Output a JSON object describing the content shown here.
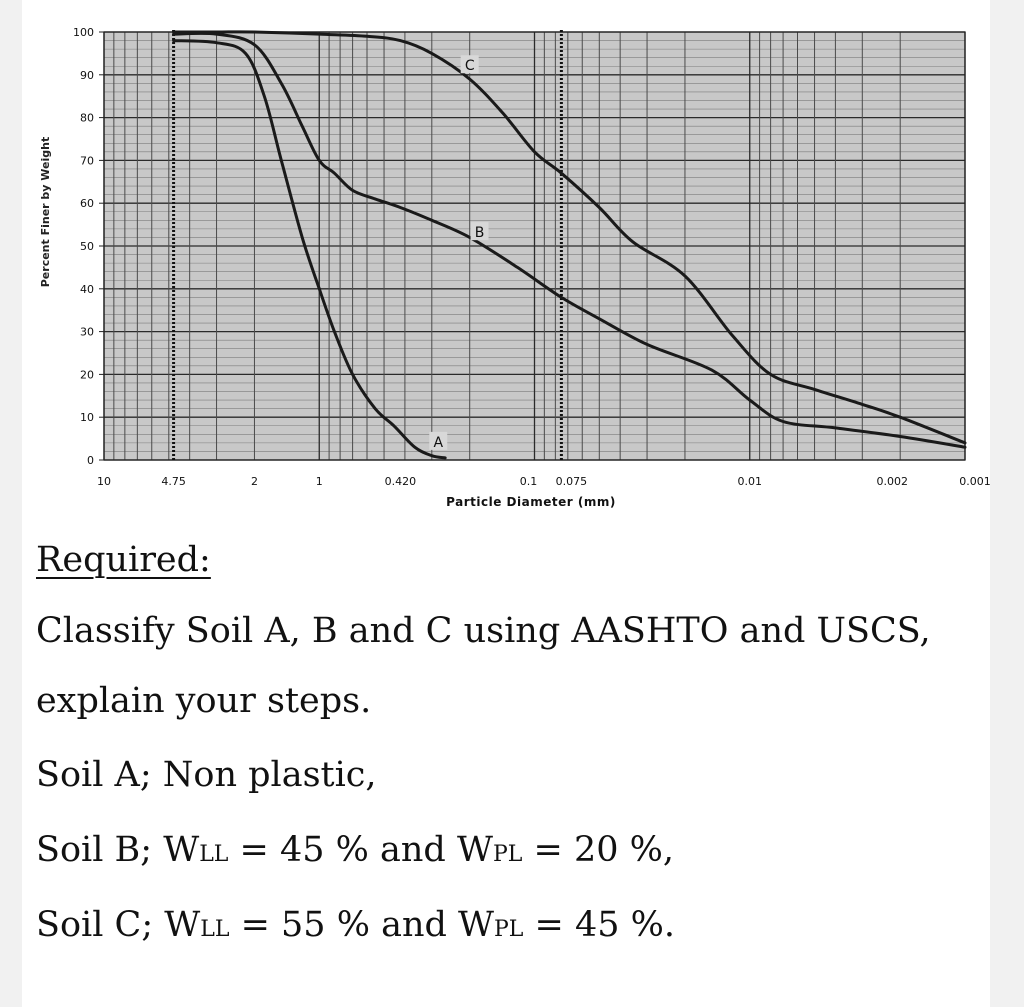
{
  "chart_data": {
    "type": "line",
    "xlabel": "Particle Diameter (mm)",
    "ylabel": "Percent Finer by Weight",
    "x_scale": "log",
    "x_direction": "descending",
    "xlim": [
      10,
      0.001
    ],
    "ylim": [
      0,
      100
    ],
    "yticks": [
      "0",
      "10",
      "20",
      "30",
      "40",
      "50",
      "60",
      "70",
      "80",
      "90",
      "100"
    ],
    "xticks": [
      {
        "value": 10,
        "label": "10"
      },
      {
        "value": 4.75,
        "label": "4.75"
      },
      {
        "value": 2,
        "label": "2"
      },
      {
        "value": 1,
        "label": "1"
      },
      {
        "value": 0.42,
        "label": "0.420"
      },
      {
        "value": 0.1,
        "label": "0.1"
      },
      {
        "value": 0.075,
        "label": "0.075"
      },
      {
        "value": 0.01,
        "label": "0.01"
      },
      {
        "value": 0.002,
        "label": "0.002"
      },
      {
        "value": 0.001,
        "label": "0.001"
      }
    ],
    "reference_lines": [
      4.75,
      0.075
    ],
    "grid": true,
    "series": [
      {
        "name": "A",
        "label_at": [
          0.28,
          4
        ],
        "x": [
          4.75,
          3.0,
          2.2,
          1.8,
          1.5,
          1.2,
          1.0,
          0.85,
          0.7,
          0.55,
          0.45,
          0.36,
          0.3,
          0.26
        ],
        "y": [
          98,
          97.5,
          95,
          85,
          70,
          52,
          40,
          30,
          20,
          12,
          8,
          3,
          1,
          0.5
        ]
      },
      {
        "name": "B",
        "label_at": [
          0.18,
          53
        ],
        "x": [
          4.75,
          3.0,
          2.0,
          1.5,
          1.2,
          1.0,
          0.85,
          0.7,
          0.55,
          0.42,
          0.3,
          0.2,
          0.12,
          0.075,
          0.05,
          0.03,
          0.015,
          0.01,
          0.007,
          0.004,
          0.002,
          0.001
        ],
        "y": [
          99.5,
          99.5,
          97,
          88,
          78,
          70,
          67,
          63,
          61,
          59,
          56,
          52,
          45,
          38,
          33,
          27,
          21,
          14,
          9,
          7.5,
          5.5,
          3
        ]
      },
      {
        "name": "C",
        "label_at": [
          0.2,
          92
        ],
        "x": [
          4.75,
          3.0,
          2.0,
          1.0,
          0.6,
          0.42,
          0.3,
          0.2,
          0.14,
          0.1,
          0.075,
          0.05,
          0.035,
          0.02,
          0.012,
          0.008,
          0.005,
          0.003,
          0.002,
          0.001
        ],
        "y": [
          100,
          100,
          100,
          99.5,
          99,
          98,
          95,
          89,
          81,
          72,
          67,
          59,
          51,
          43,
          29,
          20,
          16.5,
          13,
          10,
          4
        ]
      }
    ]
  },
  "text": {
    "required_heading": "Required:",
    "line1": "Classify Soil A, B and C using AASHTO and USCS,",
    "line2": "explain your steps.",
    "line3": "Soil A; Non plastic,",
    "line4_a": "Soil B; W",
    "line4_sub1": "LL",
    "line4_b": " = 45 % and W",
    "line4_sub2": "PL",
    "line4_c": " = 20 %,",
    "line5_a": "Soil C; W",
    "line5_sub1": "LL",
    "line5_b": " = 55 % and W",
    "line5_sub2": "PL",
    "line5_c": " = 45 %."
  }
}
